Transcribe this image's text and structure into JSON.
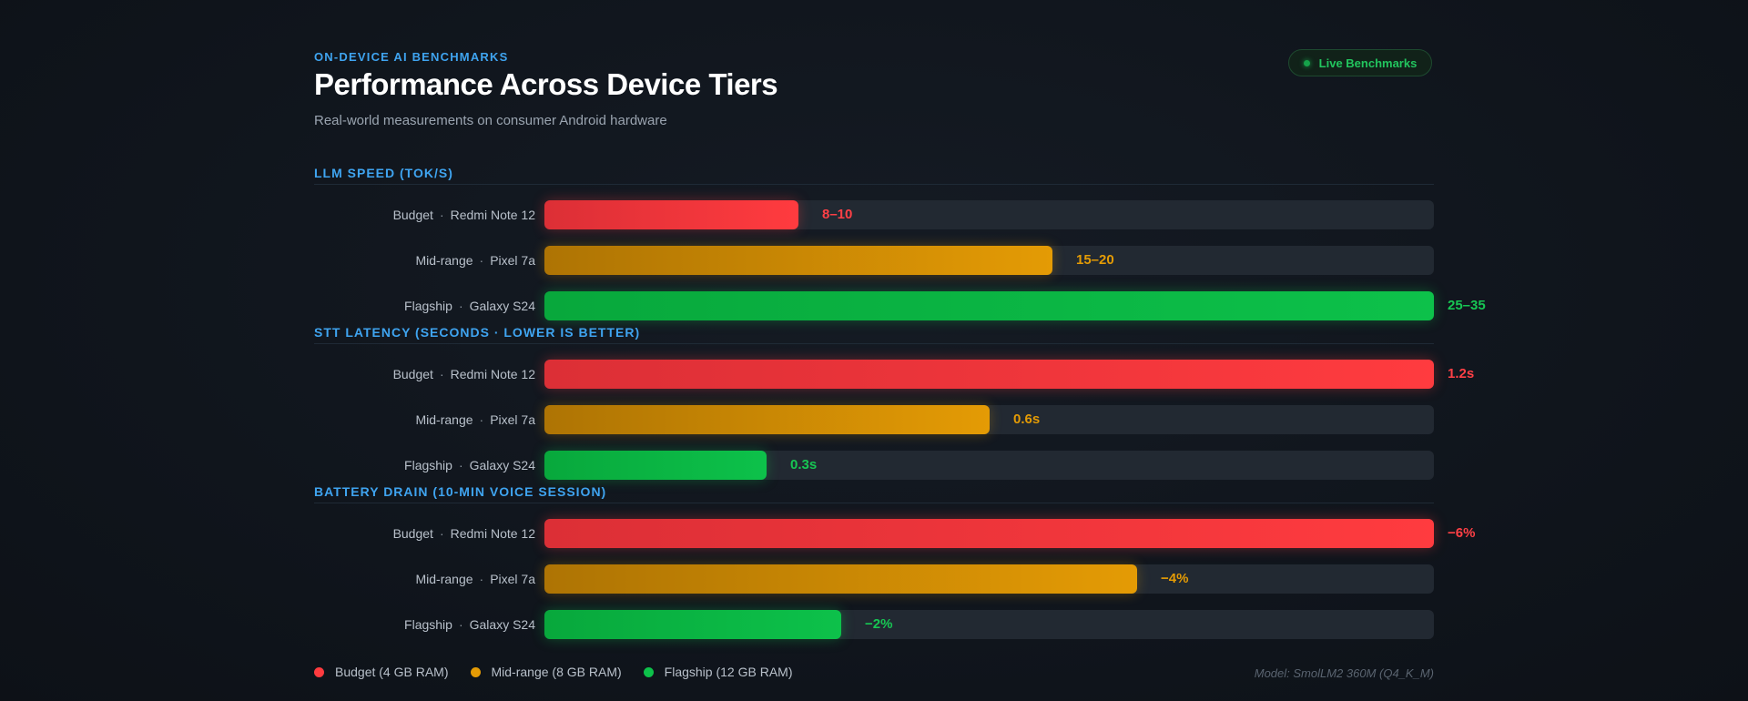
{
  "header": {
    "eyebrow": "ON-DEVICE AI BENCHMARKS",
    "title": "Performance Across Device Tiers",
    "subtitle": "Real-world measurements on consumer Android hardware",
    "badge": "Live Benchmarks"
  },
  "colors": {
    "budget": "#ff3b3f",
    "mid": "#e49b05",
    "flagship": "#0dc14a",
    "accent": "#3fa4f0"
  },
  "legend": [
    {
      "label": "Budget (4 GB RAM)",
      "color": "#ff3b3f"
    },
    {
      "label": "Mid-range (8 GB RAM)",
      "color": "#e49b05"
    },
    {
      "label": "Flagship (12 GB RAM)",
      "color": "#0dc14a"
    }
  ],
  "footer": {
    "model": "Model: SmolLM2 360M (Q4_K_M)"
  },
  "chart_data": [
    {
      "type": "bar",
      "title": "LLM SPEED (TOK/S)",
      "max": 35,
      "rows": [
        {
          "tier": "Budget",
          "device": "Redmi Note 12",
          "value": 10,
          "label": "8–10",
          "color": "red"
        },
        {
          "tier": "Mid-range",
          "device": "Pixel 7a",
          "value": 20,
          "label": "15–20",
          "color": "amber"
        },
        {
          "tier": "Flagship",
          "device": "Galaxy S24",
          "value": 35,
          "label": "25–35",
          "color": "green"
        }
      ]
    },
    {
      "type": "bar",
      "title": "STT LATENCY (SECONDS · LOWER IS BETTER)",
      "max": 1.2,
      "rows": [
        {
          "tier": "Budget",
          "device": "Redmi Note 12",
          "value": 1.2,
          "label": "1.2s",
          "color": "red"
        },
        {
          "tier": "Mid-range",
          "device": "Pixel 7a",
          "value": 0.6,
          "label": "0.6s",
          "color": "amber"
        },
        {
          "tier": "Flagship",
          "device": "Galaxy S24",
          "value": 0.3,
          "label": "0.3s",
          "color": "green"
        }
      ]
    },
    {
      "type": "bar",
      "title": "BATTERY DRAIN (10-MIN VOICE SESSION)",
      "max": 6,
      "rows": [
        {
          "tier": "Budget",
          "device": "Redmi Note 12",
          "value": 6,
          "label": "−6%",
          "color": "red"
        },
        {
          "tier": "Mid-range",
          "device": "Pixel 7a",
          "value": 4,
          "label": "−4%",
          "color": "amber"
        },
        {
          "tier": "Flagship",
          "device": "Galaxy S24",
          "value": 2,
          "label": "−2%",
          "color": "green"
        }
      ]
    }
  ]
}
